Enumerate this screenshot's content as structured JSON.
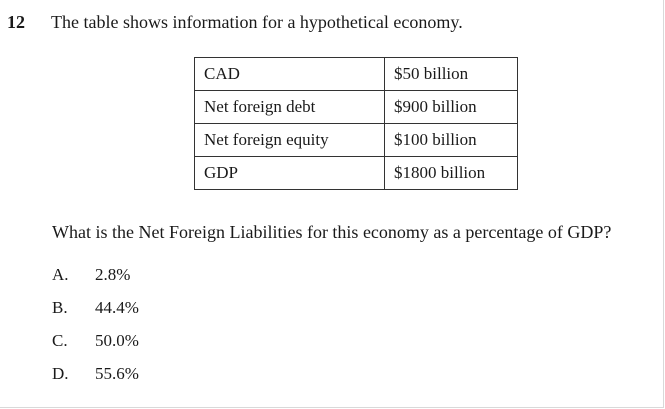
{
  "question_number": "12",
  "stem": "The table shows information for a hypothetical economy.",
  "table": {
    "rows": [
      {
        "label": "CAD",
        "value": "$50 billion"
      },
      {
        "label": "Net foreign debt",
        "value": "$900 billion"
      },
      {
        "label": "Net foreign equity",
        "value": "$100 billion"
      },
      {
        "label": "GDP",
        "value": "$1800 billion"
      }
    ]
  },
  "question": "What is the Net Foreign Liabilities for this economy as a percentage of GDP?",
  "options": [
    {
      "letter": "A.",
      "text": "2.8%"
    },
    {
      "letter": "B.",
      "text": "44.4%"
    },
    {
      "letter": "C.",
      "text": "50.0%"
    },
    {
      "letter": "D.",
      "text": "55.6%"
    }
  ]
}
